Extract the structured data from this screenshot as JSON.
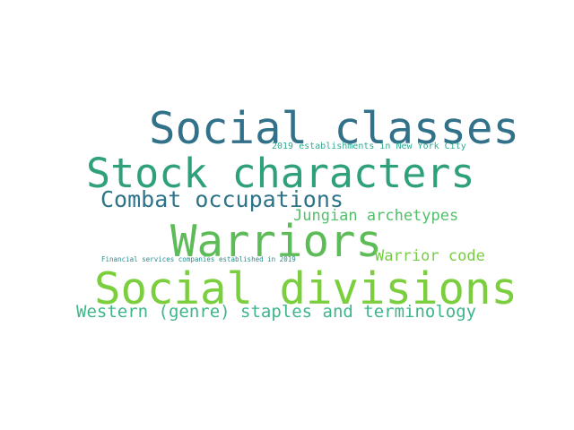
{
  "word_cloud": {
    "words": [
      {
        "text": "Social classes",
        "color": "#32718a"
      },
      {
        "text": "Stock characters",
        "color": "#2ea07c"
      },
      {
        "text": "Warriors",
        "color": "#5dbb58"
      },
      {
        "text": "Social divisions",
        "color": "#7bcf3e"
      },
      {
        "text": "Combat occupations",
        "color": "#2e7489"
      },
      {
        "text": "Jungian archetypes",
        "color": "#52c06a"
      },
      {
        "text": "Warrior code",
        "color": "#79cc48"
      },
      {
        "text": "Western (genre) staples and terminology",
        "color": "#3fb58a"
      },
      {
        "text": "2019 establishments in New York City",
        "color": "#2ea990"
      },
      {
        "text": "Financial services companies established in 2019",
        "color": "#2f8a8c"
      }
    ]
  }
}
